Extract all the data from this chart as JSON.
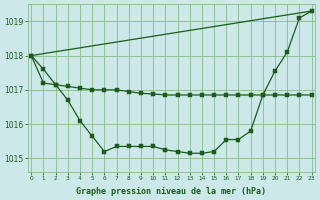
{
  "bg_color": "#cde8e8",
  "grid_color": "#88bb88",
  "line_color": "#1a5c1a",
  "xlabel": "Graphe pression niveau de la mer (hPa)",
  "ylim": [
    1014.6,
    1019.5
  ],
  "xlim": [
    -0.3,
    23.3
  ],
  "yticks": [
    1015,
    1016,
    1017,
    1018,
    1019
  ],
  "xticks": [
    0,
    1,
    2,
    3,
    4,
    5,
    6,
    7,
    8,
    9,
    10,
    11,
    12,
    13,
    14,
    15,
    16,
    17,
    18,
    19,
    20,
    21,
    22,
    23
  ],
  "line1_x": [
    0,
    23
  ],
  "line1_y": [
    1018.0,
    1019.3
  ],
  "line2_x": [
    0,
    1,
    2,
    3,
    4,
    5,
    6,
    7,
    8,
    9,
    10,
    11,
    12,
    13,
    14,
    15,
    16,
    17,
    18,
    19,
    20,
    21,
    22,
    23
  ],
  "line2_y": [
    1018.0,
    1017.6,
    1017.15,
    1016.7,
    1016.1,
    1015.65,
    1015.2,
    1015.35,
    1015.35,
    1015.35,
    1015.35,
    1015.25,
    1015.2,
    1015.15,
    1015.15,
    1015.2,
    1015.55,
    1015.55,
    1015.8,
    1016.85,
    1017.55,
    1018.1,
    1019.1,
    1019.3
  ],
  "line3_x": [
    0,
    1,
    2,
    3,
    4,
    5,
    6,
    7,
    8,
    9,
    10,
    11,
    12,
    13,
    14,
    15,
    16,
    17,
    18,
    19,
    20,
    21,
    22,
    23
  ],
  "line3_y": [
    1018.0,
    1017.2,
    1017.15,
    1017.1,
    1017.05,
    1017.0,
    1017.0,
    1017.0,
    1016.95,
    1016.9,
    1016.88,
    1016.85,
    1016.85,
    1016.85,
    1016.85,
    1016.85,
    1016.85,
    1016.85,
    1016.85,
    1016.85,
    1016.85,
    1016.85,
    1016.85,
    1016.85
  ]
}
